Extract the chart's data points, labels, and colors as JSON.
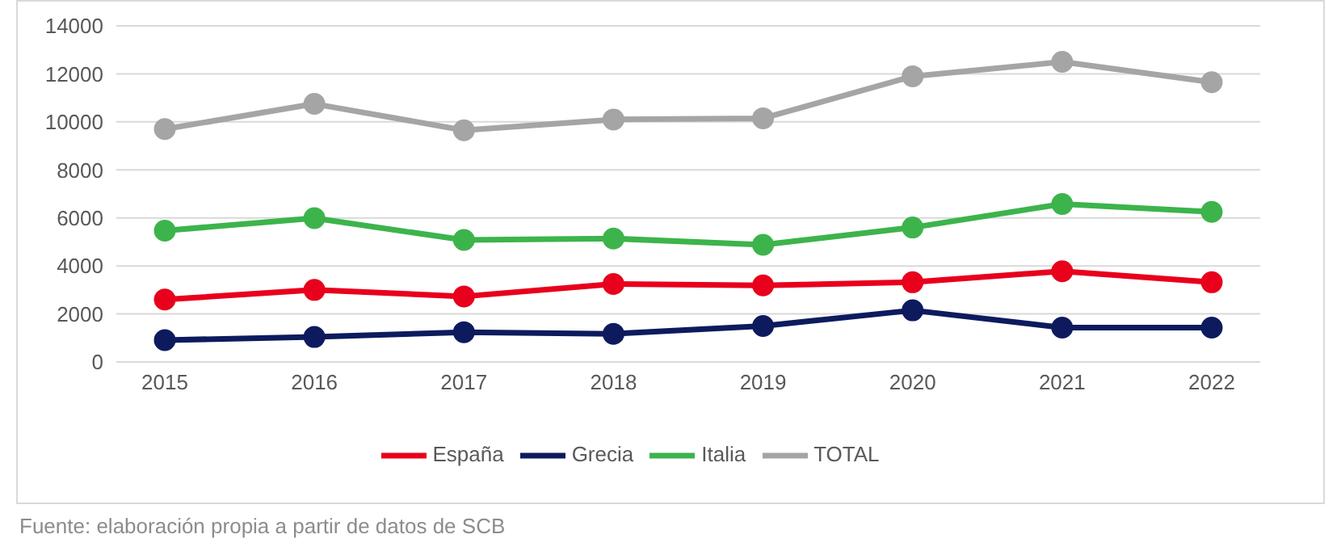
{
  "chart_data": {
    "type": "line",
    "categories": [
      "2015",
      "2016",
      "2017",
      "2018",
      "2019",
      "2020",
      "2021",
      "2022"
    ],
    "series": [
      {
        "name": "TOTAL",
        "color": "#a5a5a5",
        "values": [
          9700,
          10750,
          9650,
          10100,
          10150,
          11900,
          12500,
          11650
        ]
      },
      {
        "name": "Italia",
        "color": "#3cb44b",
        "values": [
          5470,
          5990,
          5080,
          5140,
          4880,
          5600,
          6580,
          6250
        ]
      },
      {
        "name": "España",
        "color": "#e8001c",
        "values": [
          2600,
          3000,
          2730,
          3250,
          3190,
          3320,
          3780,
          3320
        ]
      },
      {
        "name": "Grecia",
        "color": "#0d1b5e",
        "values": [
          910,
          1040,
          1240,
          1170,
          1500,
          2150,
          1430,
          1430
        ]
      }
    ],
    "ylim": [
      0,
      14000
    ],
    "yticks": [
      0,
      2000,
      4000,
      6000,
      8000,
      10000,
      12000,
      14000
    ],
    "grid": "y",
    "legend": "bottom",
    "marker": "circle",
    "line_style": "solid",
    "annotations": [
      "Fuente: elaboración propia a partir de datos de SCB"
    ]
  }
}
